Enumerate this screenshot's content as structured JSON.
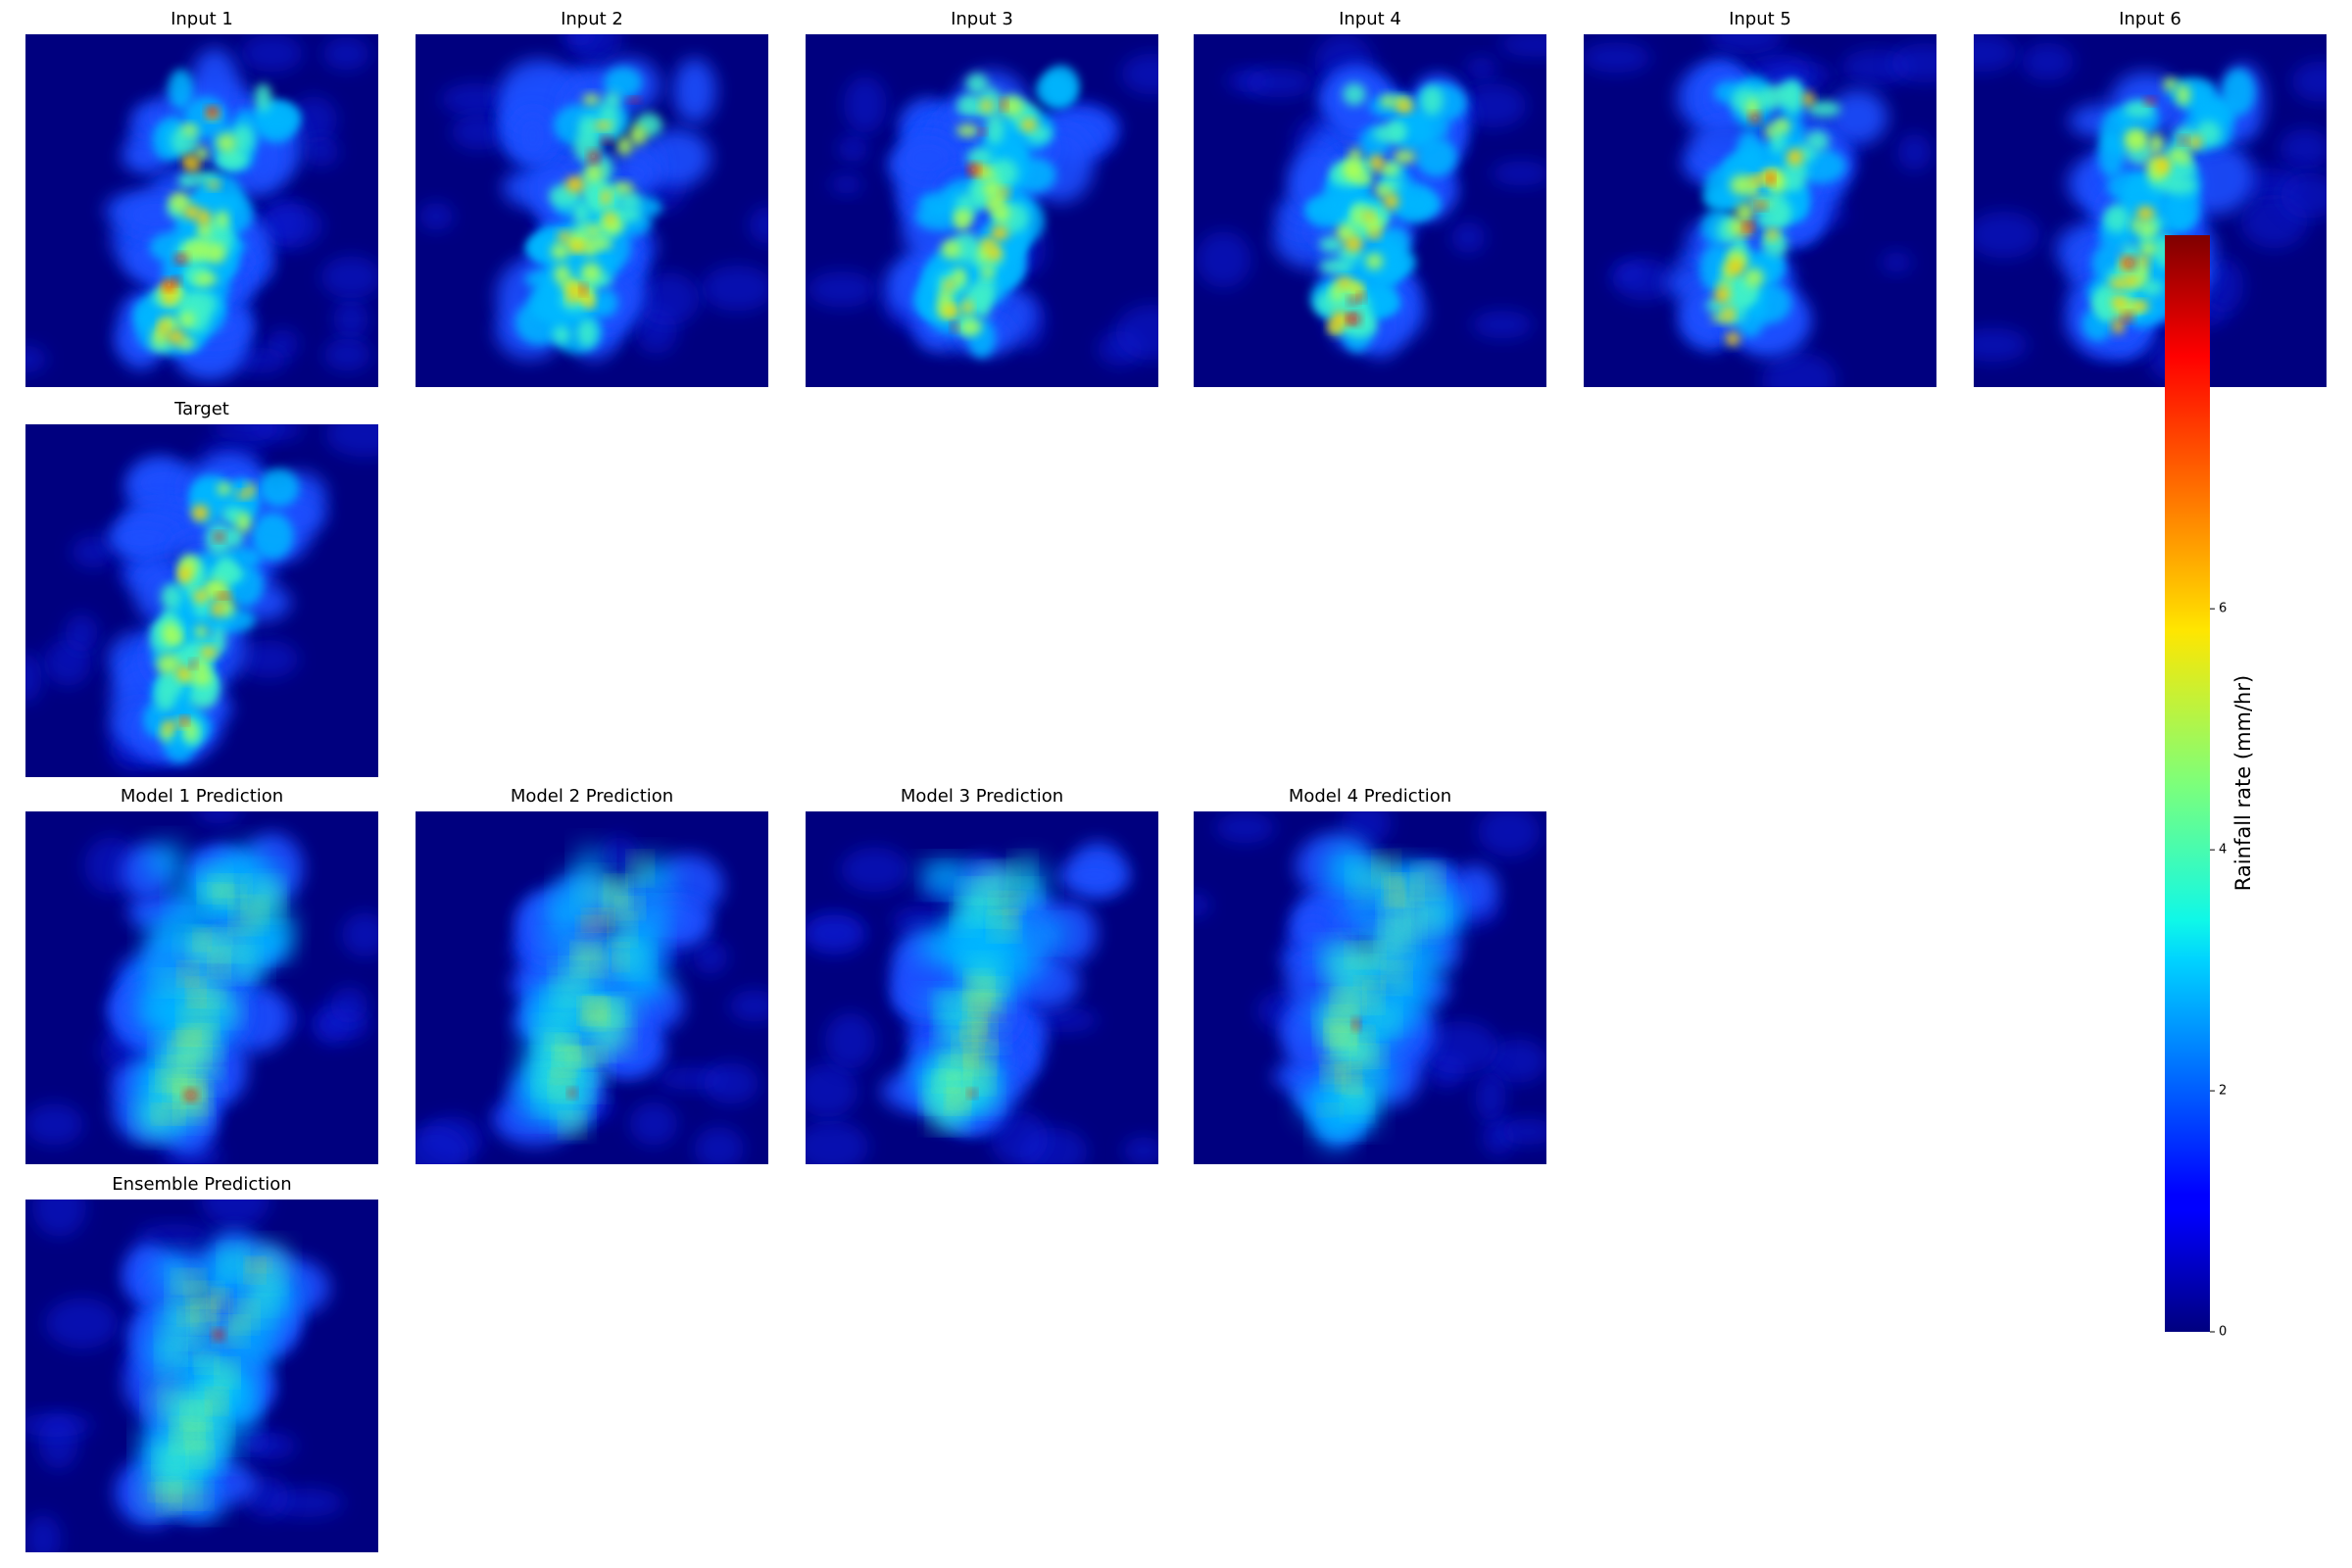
{
  "chart_data": {
    "type": "heatmap-grid",
    "rows": [
      [
        "Input 1",
        "Input 2",
        "Input 3",
        "Input 4",
        "Input 5",
        "Input 6"
      ],
      [
        "Target"
      ],
      [
        "Model 1 Prediction",
        "Model 2 Prediction",
        "Model 3 Prediction",
        "Model 4 Prediction"
      ],
      [
        "Ensemble Prediction"
      ]
    ],
    "colorbar": {
      "label": "Rainfall rate (mm/hr)",
      "ylim": [
        0,
        9.1
      ],
      "yticks": [
        0,
        2,
        4,
        6
      ]
    }
  }
}
